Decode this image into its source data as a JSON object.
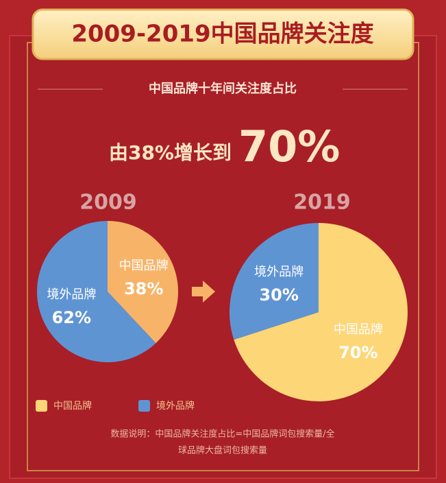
{
  "title": "2009-2019中国品牌关注度",
  "subtitle": "中国品牌十年间关注度占比",
  "headline": {
    "text": "由38%增长到",
    "highlight": "70%"
  },
  "chart_data": [
    {
      "type": "pie",
      "title": "2009",
      "categories": [
        "中国品牌",
        "境外品牌"
      ],
      "values": [
        38,
        62
      ],
      "value_labels": [
        "38%",
        "62%"
      ],
      "colors": [
        "#f7b468",
        "#5f94d3"
      ]
    },
    {
      "type": "pie",
      "title": "2019",
      "categories": [
        "中国品牌",
        "境外品牌"
      ],
      "values": [
        70,
        30
      ],
      "value_labels": [
        "70%",
        "30%"
      ],
      "colors": [
        "#fdd677",
        "#5f94d3"
      ]
    }
  ],
  "note": [
    "数据说明：中国品牌关注度占比=中国品牌词包搜索量/全",
    "球品牌大盘词包搜索量"
  ]
}
